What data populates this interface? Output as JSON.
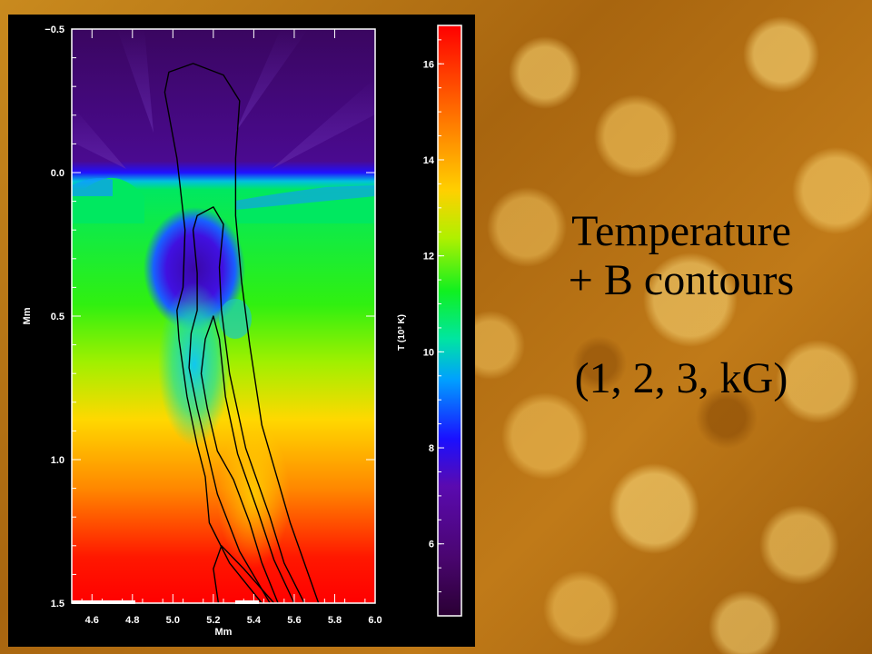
{
  "slide": {
    "caption_line1": "Temperature",
    "caption_line2": "+ B contours",
    "caption_line3": "(1, 2, 3, kG)",
    "background_color": "#b87314",
    "caption_color": "#000000"
  },
  "chart_data": {
    "type": "heatmap",
    "title": "",
    "xlabel": "Mm",
    "ylabel": "Mm",
    "x_ticks": [
      "4.6",
      "4.8",
      "5.0",
      "5.2",
      "5.4",
      "5.6",
      "5.8",
      "6.0"
    ],
    "y_ticks": [
      "−0.5",
      "0.0",
      "0.5",
      "1.0",
      "1.5"
    ],
    "xlim": [
      4.5,
      6.0
    ],
    "ylim": [
      -0.5,
      1.5
    ],
    "y_inverted": true,
    "colorbar": {
      "label": "T (10³ K)",
      "ticks": [
        "6",
        "8",
        "10",
        "12",
        "14",
        "16"
      ],
      "range": [
        4.5,
        16.8
      ],
      "colormap": [
        "#2a0033",
        "#5a0a8c",
        "#1a10ff",
        "#00a0ff",
        "#00e6a0",
        "#10f020",
        "#b0f000",
        "#ffd000",
        "#ff7000",
        "#ff0000"
      ]
    },
    "contours": [
      {
        "name": "1 kG",
        "points": [
          [
            5.225,
            1.5
          ],
          [
            5.2,
            1.38
          ],
          [
            5.24,
            1.3
          ],
          [
            5.35,
            1.38
          ],
          [
            5.5,
            1.5
          ]
        ]
      },
      {
        "name": "1 kG",
        "points": [
          [
            5.44,
            1.5
          ],
          [
            5.28,
            1.36
          ],
          [
            5.18,
            1.22
          ],
          [
            5.16,
            1.06
          ],
          [
            5.12,
            0.95
          ],
          [
            5.07,
            0.78
          ],
          [
            5.03,
            0.58
          ],
          [
            5.02,
            0.48
          ],
          [
            5.05,
            0.4
          ],
          [
            5.06,
            0.2
          ],
          [
            5.02,
            -0.05
          ],
          [
            4.96,
            -0.28
          ],
          [
            4.98,
            -0.35
          ],
          [
            5.1,
            -0.38
          ],
          [
            5.25,
            -0.34
          ],
          [
            5.33,
            -0.25
          ],
          [
            5.31,
            -0.05
          ],
          [
            5.31,
            0.15
          ],
          [
            5.34,
            0.38
          ],
          [
            5.38,
            0.6
          ],
          [
            5.44,
            0.88
          ],
          [
            5.58,
            1.22
          ],
          [
            5.72,
            1.5
          ]
        ]
      },
      {
        "name": "2 kG",
        "points": [
          [
            5.48,
            1.5
          ],
          [
            5.33,
            1.32
          ],
          [
            5.22,
            1.12
          ],
          [
            5.17,
            0.97
          ],
          [
            5.12,
            0.82
          ],
          [
            5.08,
            0.68
          ],
          [
            5.09,
            0.56
          ],
          [
            5.12,
            0.48
          ],
          [
            5.12,
            0.35
          ],
          [
            5.1,
            0.2
          ],
          [
            5.12,
            0.15
          ],
          [
            5.2,
            0.12
          ],
          [
            5.25,
            0.18
          ],
          [
            5.23,
            0.33
          ],
          [
            5.24,
            0.48
          ],
          [
            5.28,
            0.7
          ],
          [
            5.36,
            0.96
          ],
          [
            5.48,
            1.2
          ],
          [
            5.55,
            1.36
          ],
          [
            5.65,
            1.5
          ]
        ]
      },
      {
        "name": "3 kG",
        "points": [
          [
            5.52,
            1.5
          ],
          [
            5.44,
            1.36
          ],
          [
            5.38,
            1.22
          ],
          [
            5.3,
            1.07
          ],
          [
            5.22,
            0.97
          ],
          [
            5.17,
            0.82
          ],
          [
            5.14,
            0.7
          ],
          [
            5.16,
            0.58
          ],
          [
            5.2,
            0.5
          ],
          [
            5.23,
            0.58
          ],
          [
            5.26,
            0.78
          ],
          [
            5.32,
            0.98
          ],
          [
            5.42,
            1.18
          ],
          [
            5.5,
            1.35
          ],
          [
            5.6,
            1.5
          ]
        ]
      }
    ],
    "contour_color": "#000000"
  }
}
